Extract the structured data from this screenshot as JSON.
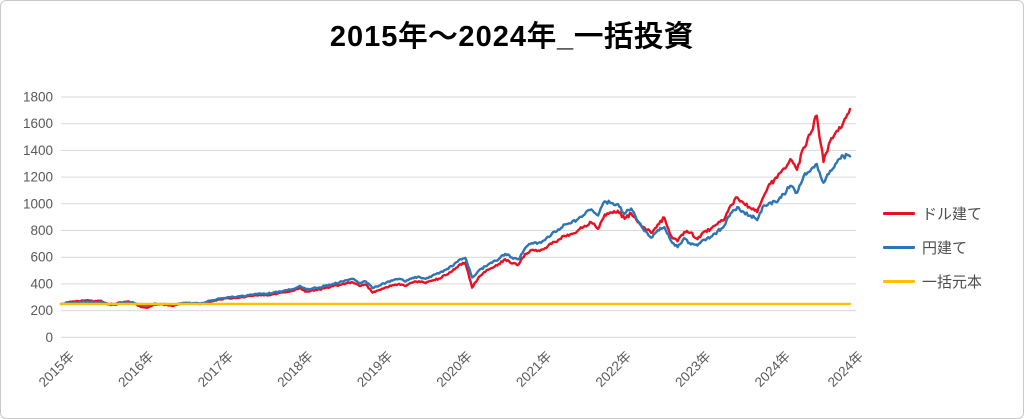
{
  "chart_data": {
    "type": "line",
    "title": "2015年〜2024年_一括投資",
    "xlabel": "",
    "ylabel": "",
    "ylim": [
      0,
      1800
    ],
    "y_ticks": [
      0,
      200,
      400,
      600,
      800,
      1000,
      1200,
      1400,
      1600,
      1800
    ],
    "grid": "horizontal",
    "legend_position": "right",
    "x_unit": "month",
    "x_range_months": 120,
    "x_tick_labels": [
      "2015年",
      "2016年",
      "2017年",
      "2018年",
      "2019年",
      "2020年",
      "2021年",
      "2022年",
      "2023年",
      "2024年",
      "2024年"
    ],
    "x_tick_month_positions": [
      0,
      12,
      24,
      36,
      48,
      60,
      72,
      84,
      96,
      108,
      119
    ],
    "colors": {
      "usd_series": "#e81123",
      "jpy_series": "#2e75b6",
      "principal_series": "#ffc000",
      "gridline": "#d9d9d9",
      "axis_text": "#595959",
      "legend_text": "#4d4d4d",
      "title_text": "#000000"
    },
    "legend": [
      {
        "label": "ドル建て",
        "color": "#e81123"
      },
      {
        "label": "円建て",
        "color": "#2e75b6"
      },
      {
        "label": "一括元本",
        "color": "#ffc000"
      }
    ],
    "series": [
      {
        "name": "ドル建て",
        "slug": "usd",
        "color": "#e81123",
        "values": [
          250,
          262,
          268,
          272,
          278,
          270,
          275,
          252,
          248,
          262,
          268,
          258,
          228,
          222,
          243,
          248,
          242,
          236,
          250,
          256,
          252,
          248,
          262,
          272,
          285,
          292,
          295,
          298,
          305,
          312,
          318,
          315,
          322,
          332,
          340,
          348,
          368,
          342,
          352,
          358,
          372,
          382,
          392,
          405,
          412,
          385,
          395,
          335,
          355,
          375,
          390,
          400,
          385,
          410,
          420,
          405,
          425,
          440,
          465,
          495,
          540,
          560,
          372,
          450,
          490,
          520,
          548,
          585,
          552,
          545,
          625,
          655,
          650,
          668,
          700,
          730,
          758,
          775,
          802,
          835,
          860,
          812,
          920,
          935,
          948,
          888,
          928,
          862,
          822,
          783,
          845,
          896,
          762,
          720,
          788,
          785,
          735,
          792,
          812,
          848,
          878,
          988,
          1048,
          1002,
          968,
          938,
          1058,
          1150,
          1195,
          1265,
          1335,
          1255,
          1420,
          1520,
          1660,
          1312,
          1468,
          1545,
          1610,
          1710
        ]
      },
      {
        "name": "円建て",
        "slug": "jpy",
        "color": "#2e75b6",
        "values": [
          250,
          255,
          260,
          265,
          268,
          262,
          268,
          246,
          244,
          256,
          264,
          256,
          244,
          240,
          252,
          250,
          248,
          245,
          255,
          258,
          256,
          252,
          266,
          278,
          290,
          298,
          302,
          306,
          312,
          320,
          328,
          326,
          334,
          344,
          352,
          362,
          385,
          358,
          368,
          374,
          390,
          400,
          412,
          428,
          438,
          408,
          418,
          368,
          388,
          408,
          425,
          438,
          418,
          445,
          455,
          438,
          462,
          478,
          505,
          532,
          578,
          595,
          448,
          500,
          532,
          558,
          585,
          625,
          598,
          585,
          668,
          705,
          708,
          728,
          772,
          808,
          845,
          858,
          888,
          920,
          958,
          912,
          1018,
          1005,
          998,
          925,
          965,
          872,
          795,
          746,
          802,
          825,
          722,
          675,
          742,
          696,
          688,
          732,
          752,
          792,
          832,
          928,
          975,
          938,
          912,
          878,
          988,
          1010,
          1012,
          1072,
          1135,
          1082,
          1205,
          1245,
          1298,
          1158,
          1248,
          1308,
          1358,
          1355
        ]
      },
      {
        "name": "一括元本",
        "slug": "principal",
        "color": "#ffc000",
        "constant_value": 250
      }
    ]
  }
}
